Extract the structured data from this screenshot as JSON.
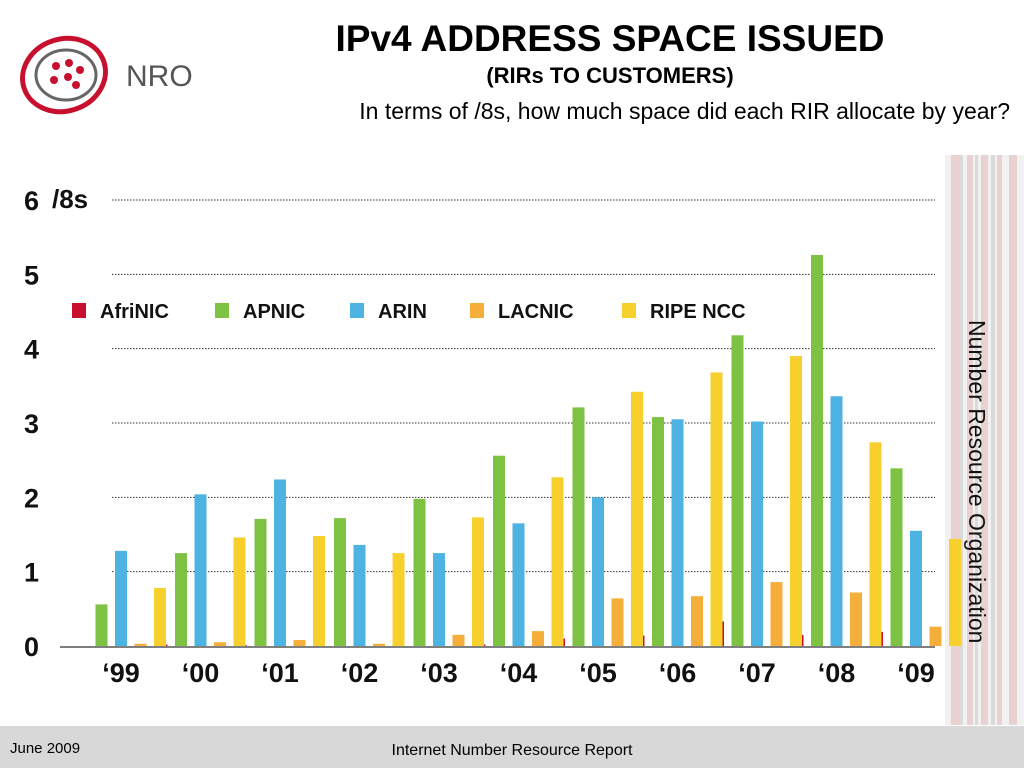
{
  "header": {
    "title": "IPv4 ADDRESS SPACE ISSUED",
    "subtitle": "(RIRs TO CUSTOMERS)",
    "question": "In terms of /8s, how much space did each RIR allocate by year?",
    "logo_text": "NRO"
  },
  "side": {
    "org_name": "Number Resource Organization"
  },
  "footer": {
    "date": "June 2009",
    "report": "Internet Number Resource Report"
  },
  "chart_data": {
    "type": "bar",
    "ylabel": "/8s",
    "ylim": [
      0,
      6
    ],
    "yticks": [
      "0",
      "1",
      "2",
      "3",
      "4",
      "5",
      "6"
    ],
    "grid": "dotted horizontal",
    "legend_position": "top-left",
    "categories": [
      "‘99",
      "‘00",
      "‘01",
      "‘02",
      "‘03",
      "‘04",
      "‘05",
      "‘06",
      "‘07",
      "‘08",
      "‘09"
    ],
    "series": [
      {
        "name": "AfriNIC",
        "color": "#c8102e",
        "values": [
          0,
          0.02,
          0.01,
          0,
          0,
          0.02,
          0.1,
          0.14,
          0.33,
          0.15,
          0.19
        ]
      },
      {
        "name": "APNIC",
        "color": "#7dc242",
        "values": [
          0.56,
          1.25,
          1.71,
          1.72,
          1.98,
          2.56,
          3.21,
          3.08,
          4.18,
          5.26,
          2.39
        ]
      },
      {
        "name": "ARIN",
        "color": "#4db3e2",
        "values": [
          1.28,
          2.04,
          2.24,
          1.36,
          1.25,
          1.65,
          2.0,
          3.05,
          3.02,
          3.36,
          1.55
        ]
      },
      {
        "name": "LACNIC",
        "color": "#f6ae3b",
        "values": [
          0.03,
          0.05,
          0.08,
          0.03,
          0.15,
          0.2,
          0.64,
          0.67,
          0.86,
          0.72,
          0.26
        ]
      },
      {
        "name": "RIPE NCC",
        "color": "#f8d02e",
        "values": [
          0.78,
          1.46,
          1.48,
          1.25,
          1.73,
          2.27,
          3.42,
          3.68,
          3.9,
          2.74,
          1.44
        ]
      }
    ]
  }
}
